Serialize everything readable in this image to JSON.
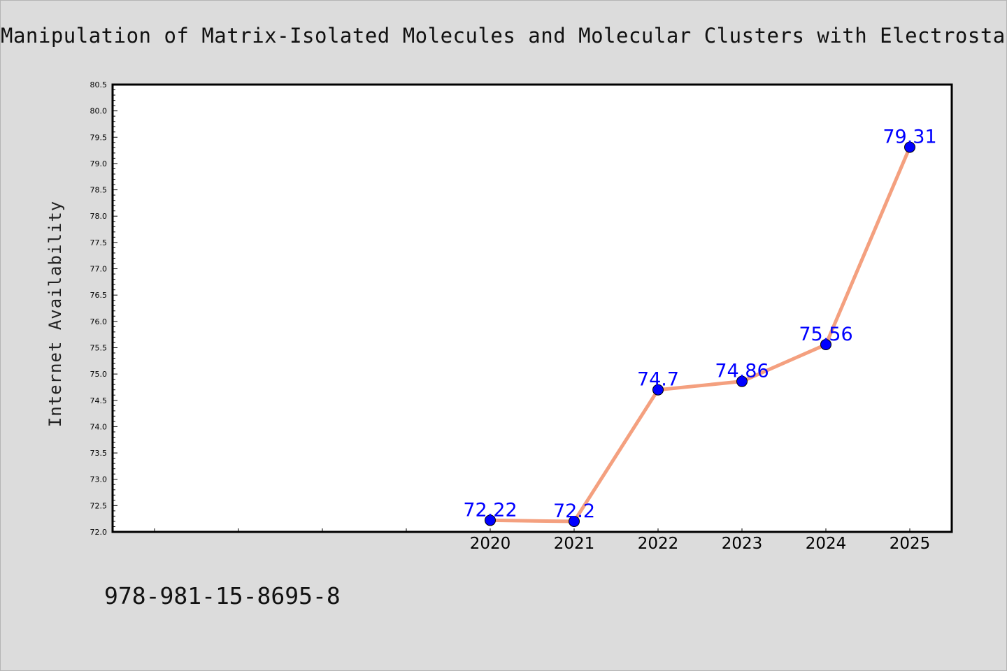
{
  "chart_data": {
    "type": "line",
    "title": "Manipulation of Matrix-Isolated Molecules and Molecular Clusters with Electrostatic Fields",
    "xlabel": "",
    "ylabel": "Internet Availability",
    "categories": [
      "2020",
      "2021",
      "2022",
      "2023",
      "2024",
      "2025"
    ],
    "series": [
      {
        "values": [
          72.22,
          72.2,
          74.7,
          74.86,
          75.56,
          79.31
        ]
      }
    ],
    "data_labels": [
      "72.22",
      "72.2",
      "74.7",
      "74.86",
      "75.56",
      "79.31"
    ],
    "ylim": [
      72.0,
      80.5
    ],
    "y_ticks": [
      "72.0",
      "72.5",
      "73.0",
      "73.5",
      "74.0",
      "74.5",
      "75.0",
      "75.5",
      "76.0",
      "76.5",
      "77.0",
      "77.5",
      "78.0",
      "78.5",
      "79.0",
      "79.5",
      "80.0",
      "80.5"
    ],
    "grid": false,
    "line_color": "#f4a07f",
    "marker_color": "#0000ff",
    "label_color": "#0000ff"
  },
  "footer": {
    "code": "978-981-15-8695-8"
  }
}
